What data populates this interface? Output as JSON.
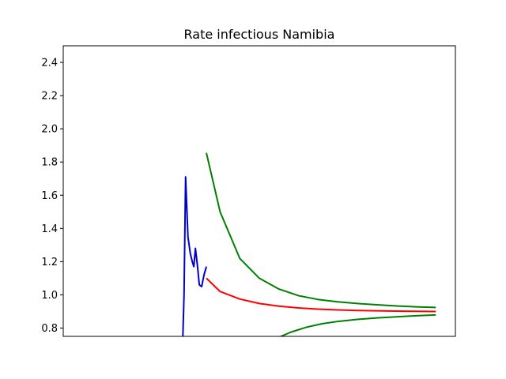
{
  "chart_data": {
    "type": "line",
    "title": "Rate infectious Namibia",
    "xlabel": "",
    "ylabel": "",
    "xlim": [
      0,
      100
    ],
    "ylim": [
      0.75,
      2.5
    ],
    "yticks": [
      0.8,
      1.0,
      1.2,
      1.4,
      1.6,
      1.8,
      2.0,
      2.2,
      2.4
    ],
    "ytick_labels": [
      "0.8",
      "1.0",
      "1.2",
      "1.4",
      "1.6",
      "1.8",
      "2.0",
      "2.2",
      "2.4"
    ],
    "xticks_visible": false,
    "grid": false,
    "series": [
      {
        "color": "#0000cc",
        "x": [
          30.5,
          30.8,
          31.2,
          31.8,
          32.4,
          32.9,
          33.3,
          33.7,
          34.2,
          34.7,
          35.3,
          35.9,
          36.5
        ],
        "y": [
          0.75,
          1.0,
          1.71,
          1.35,
          1.25,
          1.2,
          1.17,
          1.28,
          1.18,
          1.06,
          1.05,
          1.12,
          1.17
        ]
      },
      {
        "color": "#ff0000",
        "x": [
          36.5,
          40,
          45,
          50,
          55,
          60,
          65,
          70,
          75,
          80,
          85,
          90,
          95
        ],
        "y": [
          1.1,
          1.02,
          0.975,
          0.948,
          0.932,
          0.921,
          0.914,
          0.909,
          0.906,
          0.904,
          0.902,
          0.901,
          0.9
        ]
      },
      {
        "color": "#008000",
        "x": [
          36.5,
          40,
          45,
          50,
          55,
          60,
          65,
          70,
          75,
          80,
          85,
          90,
          95
        ],
        "y": [
          1.855,
          1.5,
          1.22,
          1.1,
          1.035,
          0.995,
          0.972,
          0.958,
          0.948,
          0.94,
          0.933,
          0.928,
          0.924
        ]
      },
      {
        "color": "#008000",
        "x": [
          55.5,
          58,
          62,
          66,
          70,
          75,
          80,
          85,
          90,
          95
        ],
        "y": [
          0.75,
          0.775,
          0.805,
          0.826,
          0.84,
          0.852,
          0.861,
          0.868,
          0.874,
          0.879
        ]
      }
    ]
  }
}
